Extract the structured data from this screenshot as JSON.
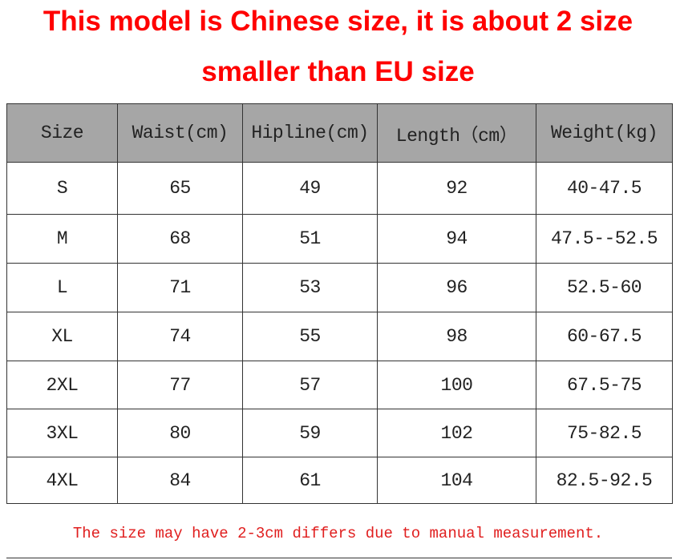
{
  "header": {
    "title_line1": "This model is Chinese size, it is about 2 size",
    "title_line2": "smaller than EU size"
  },
  "table": {
    "columns": [
      "Size",
      "Waist(cm)",
      "Hipline(cm)",
      "Length（cm）",
      "Weight(kg)"
    ],
    "rows": [
      [
        "S",
        "65",
        "49",
        "92",
        "40-47.5"
      ],
      [
        "M",
        "68",
        "51",
        "94",
        "47.5--52.5"
      ],
      [
        "L",
        "71",
        "53",
        "96",
        "52.5-60"
      ],
      [
        "XL",
        "74",
        "55",
        "98",
        "60-67.5"
      ],
      [
        "2XL",
        "77",
        "57",
        "100",
        "67.5-75"
      ],
      [
        "3XL",
        "80",
        "59",
        "102",
        "75-82.5"
      ],
      [
        "4XL",
        "84",
        "61",
        "104",
        "82.5-92.5"
      ]
    ]
  },
  "footer": {
    "note": "The size may have 2-3cm differs due to manual measurement."
  }
}
